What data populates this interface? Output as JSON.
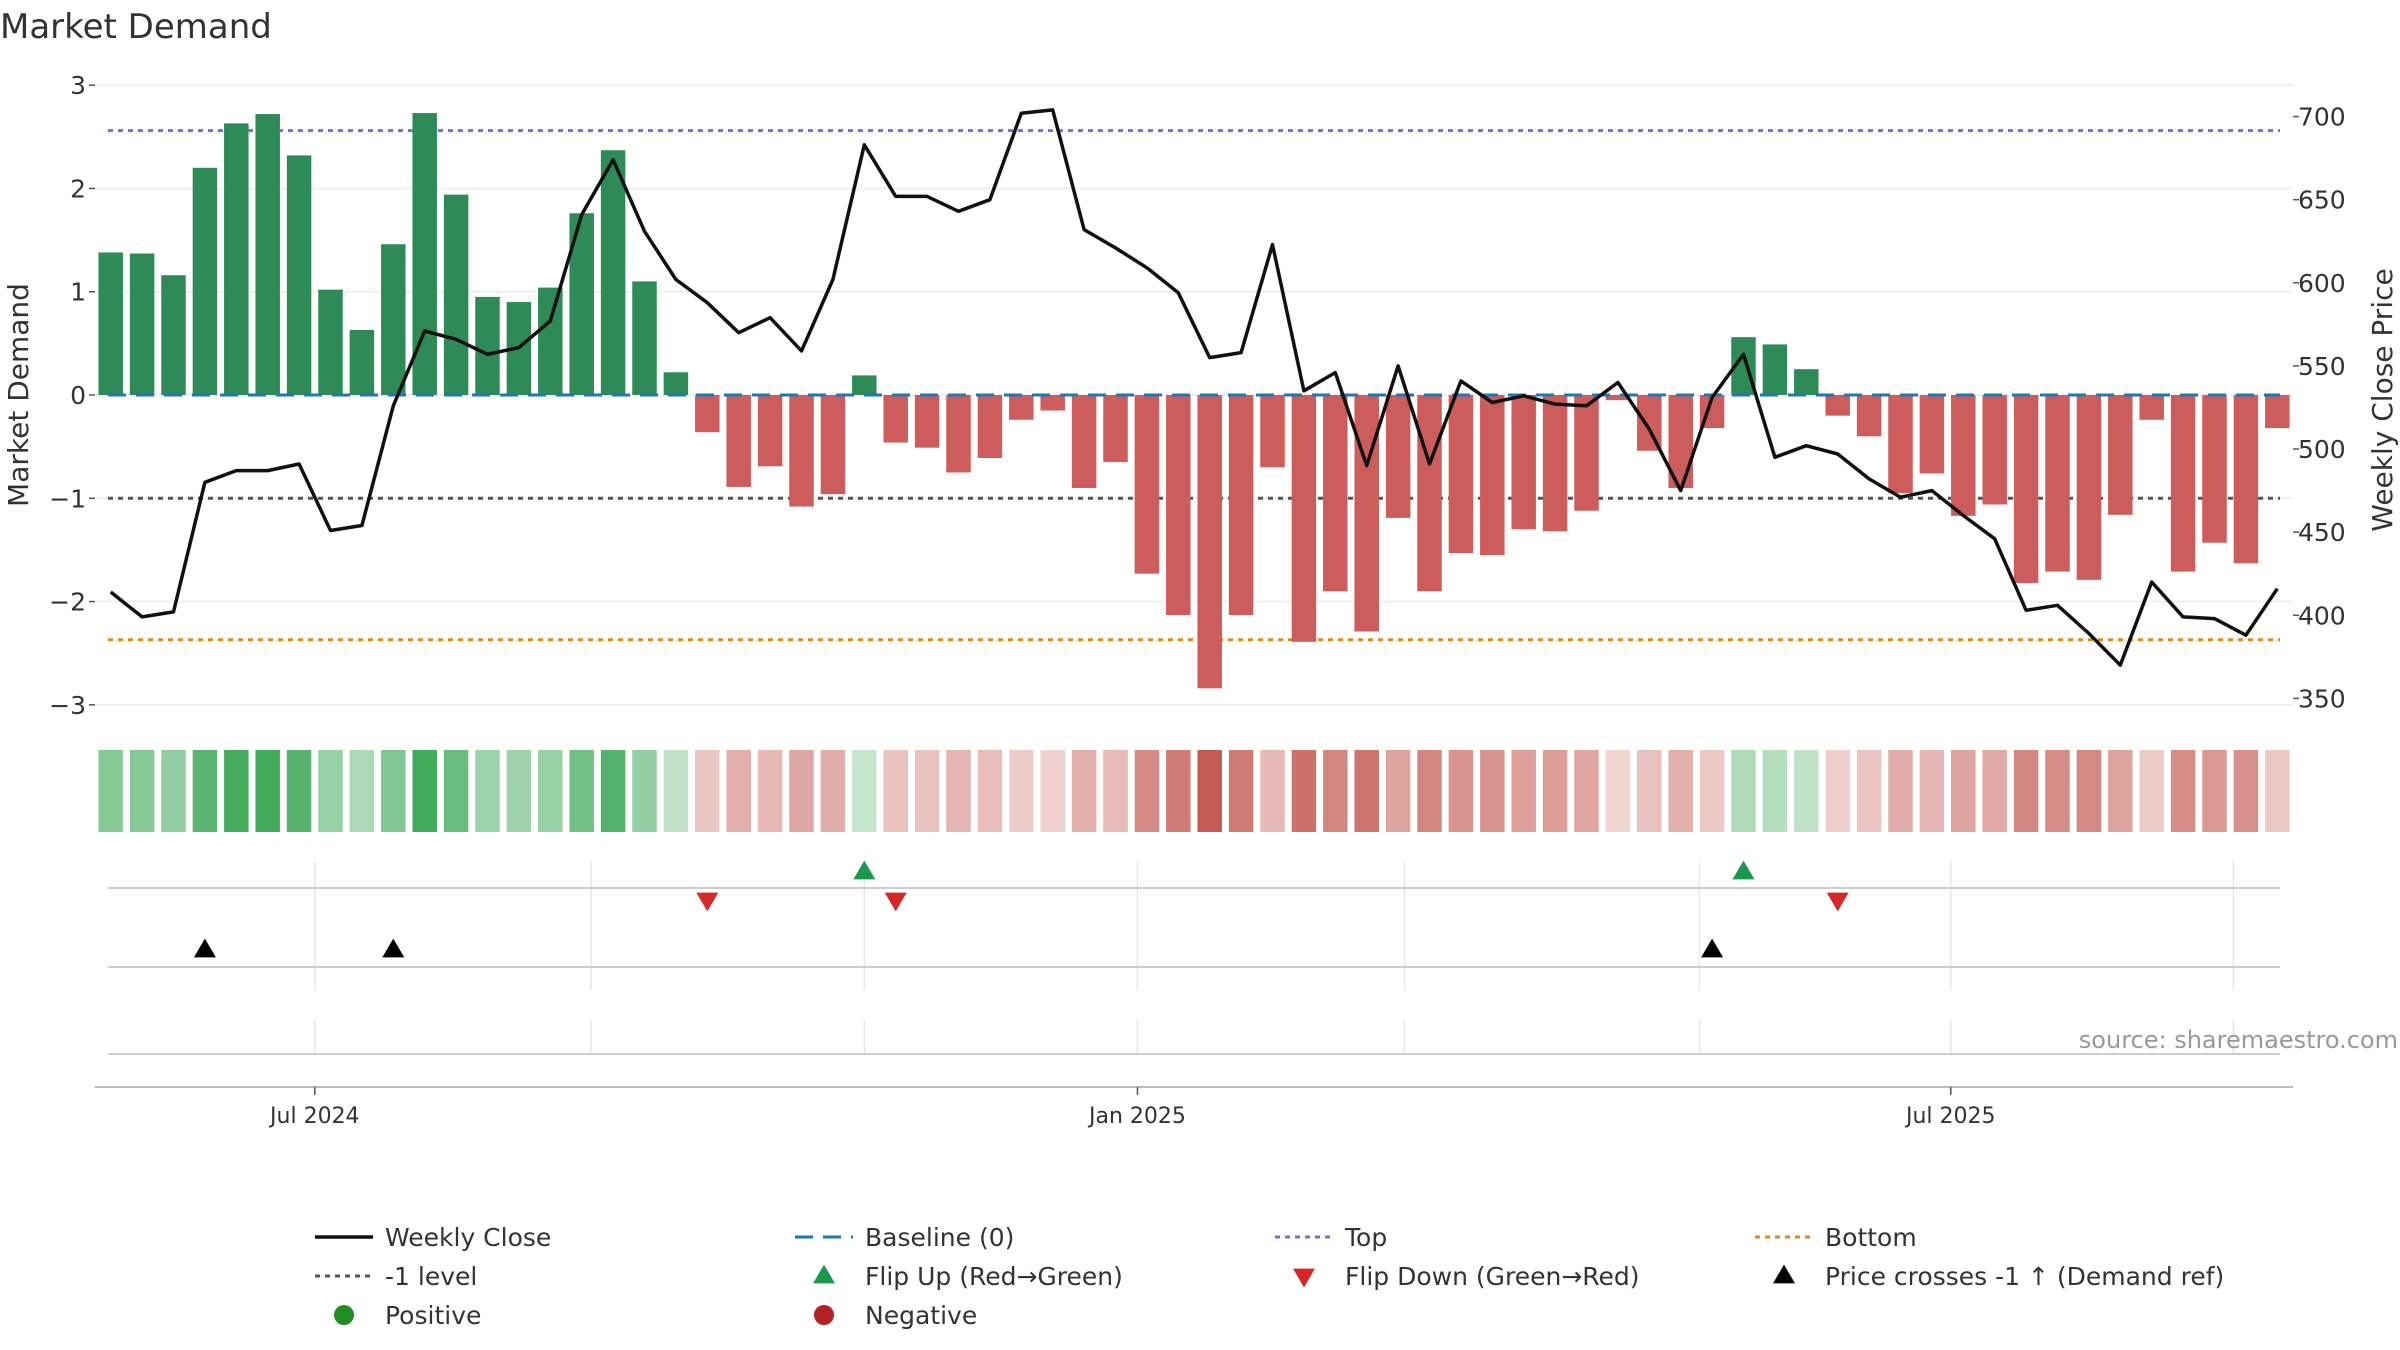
{
  "chart_data": {
    "type": "bar+line",
    "title": "Market Demand",
    "ylabel_left": "Market Demand",
    "ylabel_right": "Weekly Close Price",
    "ylim_left": [
      -3.05,
      3.05
    ],
    "ylim_right": [
      343,
      722
    ],
    "yticks_left": [
      3,
      2,
      1,
      0,
      -1,
      -2,
      -3
    ],
    "yticks_left_labels": [
      "3",
      "2",
      "1",
      "0",
      "−1",
      "−2",
      "−3"
    ],
    "yticks_right": [
      700,
      650,
      600,
      550,
      500,
      450,
      400,
      350
    ],
    "yticks_right_labels": [
      "700",
      "650",
      "600",
      "550",
      "500",
      "450",
      "400",
      "350"
    ],
    "xtick_labels": [
      "Jul 2024",
      "Jan 2025",
      "Jul 2025"
    ],
    "xtick_weeks": [
      6.5,
      32.7,
      58.6
    ],
    "week_gridlines": [
      6.5,
      15.3,
      24,
      32.7,
      41.2,
      50.6,
      58.6,
      67.6
    ],
    "levels": {
      "top": 2.56,
      "bottom": -2.37,
      "minus_one": -1,
      "baseline": 0
    },
    "demand": [
      1.38,
      1.37,
      1.16,
      2.2,
      2.63,
      2.72,
      2.32,
      1.02,
      0.63,
      1.46,
      2.73,
      1.94,
      0.95,
      0.9,
      1.04,
      1.76,
      2.37,
      1.1,
      0.22,
      -0.36,
      -0.89,
      -0.69,
      -1.08,
      -0.96,
      0.19,
      -0.46,
      -0.51,
      -0.75,
      -0.61,
      -0.24,
      -0.15,
      -0.9,
      -0.65,
      -1.73,
      -2.13,
      -2.84,
      -2.13,
      -0.7,
      -2.39,
      -1.9,
      -2.29,
      -1.19,
      -1.9,
      -1.53,
      -1.55,
      -1.3,
      -1.32,
      -1.12,
      -0.05,
      -0.54,
      -0.9,
      -0.32,
      0.56,
      0.49,
      0.25,
      -0.2,
      -0.4,
      -0.95,
      -0.76,
      -1.17,
      -1.06,
      -1.82,
      -1.71,
      -1.79,
      -1.16,
      -0.24,
      -1.71,
      -1.43,
      -1.63,
      -0.32
    ],
    "weekly_close": [
      414,
      399,
      402,
      480,
      487,
      487,
      491,
      451,
      454,
      526,
      571,
      566,
      557,
      561,
      577,
      641,
      674,
      631,
      602,
      588,
      570,
      579,
      559,
      602,
      683,
      652,
      652,
      643,
      650,
      702,
      704,
      632,
      621,
      609,
      594,
      555,
      558,
      623,
      535,
      546,
      490,
      550,
      491,
      541,
      528,
      532,
      527,
      526,
      540,
      512,
      475,
      531,
      557,
      495,
      502,
      497,
      482,
      471,
      475,
      460,
      446,
      403,
      406,
      389,
      370,
      420,
      399,
      398,
      388,
      416
    ],
    "flip_up_weeks": [
      24,
      52
    ],
    "flip_down_weeks": [
      19,
      25,
      55
    ],
    "price_cross_weeks": [
      3,
      9,
      51
    ],
    "colors": {
      "positive_bar": "#2e8b57",
      "negative_bar": "#cd5c5c",
      "heat_green": "#3aa655",
      "heat_red": "#c45c55",
      "price_line": "#111111",
      "baseline": "#1f77b4",
      "top": "#7b6fc8",
      "bottom": "#e08a1e",
      "minus_one": "#555555",
      "flip_up": "#1a9850",
      "flip_down": "#d62728",
      "cross": "#000000",
      "positive_dot": "#228b22",
      "negative_dot": "#b22222"
    },
    "legend": [
      [
        "Weekly Close",
        "Baseline (0)",
        "Top",
        "Bottom"
      ],
      [
        "-1 level",
        "Flip Up (Red→Green)",
        "Flip Down (Green→Red)",
        "Price crosses -1 ↑ (Demand ref)"
      ],
      [
        "Positive",
        "Negative"
      ]
    ],
    "source_note": "source: sharemaestro.com"
  }
}
